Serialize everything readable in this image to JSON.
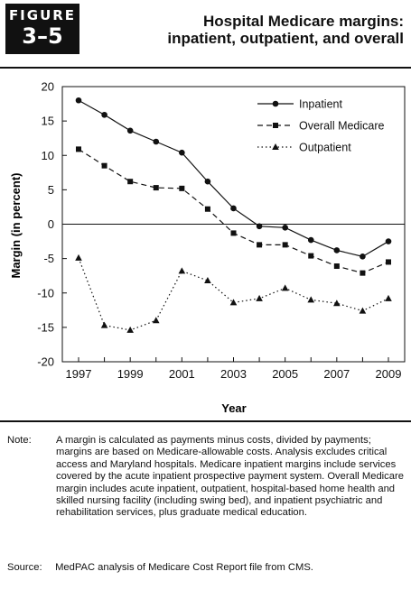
{
  "figure": {
    "word": "FIGURE",
    "number": "3–5",
    "title_line1": "Hospital Medicare margins:",
    "title_line2": "inpatient, outpatient, and overall"
  },
  "chart_data": {
    "type": "line",
    "title": "",
    "xlabel": "Year",
    "ylabel": "Margin (in percent)",
    "ylim": [
      -20,
      20
    ],
    "xlim": [
      1997,
      2009
    ],
    "yticks": [
      20,
      15,
      10,
      5,
      0,
      -5,
      -10,
      -15,
      -20
    ],
    "yticklabels": [
      "20",
      "15",
      "10",
      "5",
      "0",
      "-5",
      "-10",
      "-15",
      "-20"
    ],
    "xticks": [
      1997,
      1999,
      2001,
      2003,
      2005,
      2007,
      2009
    ],
    "xticklabels": [
      "1997",
      "1999",
      "2001",
      "2003",
      "2005",
      "2007",
      "2009"
    ],
    "x": [
      1997,
      1998,
      1999,
      2000,
      2001,
      2002,
      2003,
      2004,
      2005,
      2006,
      2007,
      2008,
      2009
    ],
    "legend_position": "top-right",
    "series": [
      {
        "name": "Inpatient",
        "style": "solid",
        "marker": "circle",
        "values": [
          18.0,
          15.9,
          13.6,
          12.0,
          10.4,
          6.2,
          2.3,
          -0.3,
          -0.5,
          -2.3,
          -3.8,
          -4.7,
          -2.5
        ]
      },
      {
        "name": "Overall Medicare",
        "style": "dashed",
        "marker": "square",
        "values": [
          10.9,
          8.5,
          6.2,
          5.3,
          5.2,
          2.2,
          -1.3,
          -3.0,
          -3.0,
          -4.6,
          -6.1,
          -7.1,
          -5.5
        ]
      },
      {
        "name": "Outpatient",
        "style": "dotted",
        "marker": "triangle",
        "values": [
          -4.9,
          -14.7,
          -15.4,
          -14.0,
          -6.8,
          -8.2,
          -11.4,
          -10.8,
          -9.3,
          -11.0,
          -11.5,
          -12.6,
          -10.8
        ]
      }
    ]
  },
  "note": {
    "label": "Note:",
    "text": "A margin is calculated as payments minus costs, divided by payments; margins are based on Medicare-allowable costs. Analysis excludes critical access and Maryland hospitals. Medicare inpatient margins include services covered by the acute inpatient prospective payment system. Overall Medicare margin includes acute inpatient, outpatient, hospital-based home health and skilled nursing facility (including swing bed), and inpatient psychiatric and rehabilitation services, plus graduate medical education."
  },
  "source": {
    "label": "Source:",
    "text": "MedPAC analysis of Medicare Cost Report file from CMS."
  },
  "colors": {
    "ink": "#111111",
    "background": "#ffffff"
  }
}
